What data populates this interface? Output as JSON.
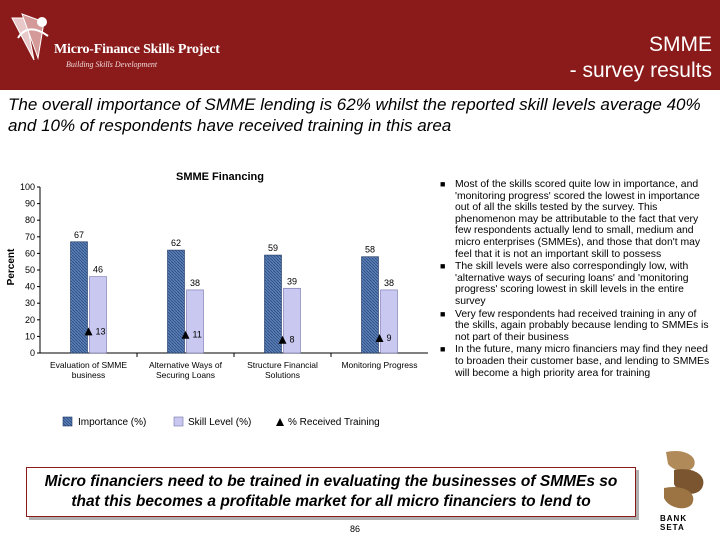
{
  "header": {
    "title_line1": "SMME",
    "title_line2": "- survey results",
    "logo_text": "Micro-Finance Skills Project",
    "logo_tagline": "Building Skills Development"
  },
  "subtitle": "The overall importance of SMME lending is 62% whilst the reported skill levels average 40% and 10% of respondents have received training in this area",
  "colors": {
    "header_bg": "#8b1a1a",
    "importance": "#5a80b8",
    "skill_level": "#c8c8f0",
    "received_training": "#000000"
  },
  "chart_data": {
    "type": "bar",
    "title": "SMME Financing",
    "ylabel": "Percent",
    "ylim": [
      0,
      100
    ],
    "yticks": [
      0,
      10,
      20,
      30,
      40,
      50,
      60,
      70,
      80,
      90,
      100
    ],
    "categories": [
      "Evaluation of SMME business",
      "Alternative Ways of Securing Loans",
      "Structure Financial Solutions",
      "Monitoring Progress"
    ],
    "series": [
      {
        "name": "Importance (%)",
        "values": [
          67,
          62,
          59,
          58
        ],
        "color": "#5a80b8",
        "style": "hatched-bar"
      },
      {
        "name": "Skill Level (%)",
        "values": [
          46,
          38,
          39,
          38
        ],
        "color": "#c8c8f0",
        "style": "bar"
      },
      {
        "name": "% Received Training",
        "values": [
          13,
          11,
          8,
          9
        ],
        "color": "#000000",
        "style": "triangle-marker"
      }
    ],
    "legend_position": "bottom",
    "grid": false
  },
  "bullets": [
    "Most of the skills scored quite low in importance, and 'monitoring progress' scored the lowest in importance out of all the skills tested by the survey. This phenomenon may be attributable to the fact that very few respondents actually lend to small, medium and micro enterprises (SMMEs), and those that don't may feel that it is not an important skill to possess",
    "The skill levels were also correspondingly low, with 'alternative ways of securing loans' and 'monitoring progress' scoring lowest in skill levels in the entire survey",
    "Very few respondents had received training in any of the skills, again probably because lending to SMMEs is not part of their business",
    "In the future, many micro financiers may find they need to broaden their customer base, and lending to SMMEs will become a high priority area for training"
  ],
  "callout": "Micro financiers need to be trained in evaluating the businesses of SMMEs so that this becomes a profitable market for all micro financiers to lend to",
  "page_number": "86",
  "bank_logo_text": "BANK SETA"
}
